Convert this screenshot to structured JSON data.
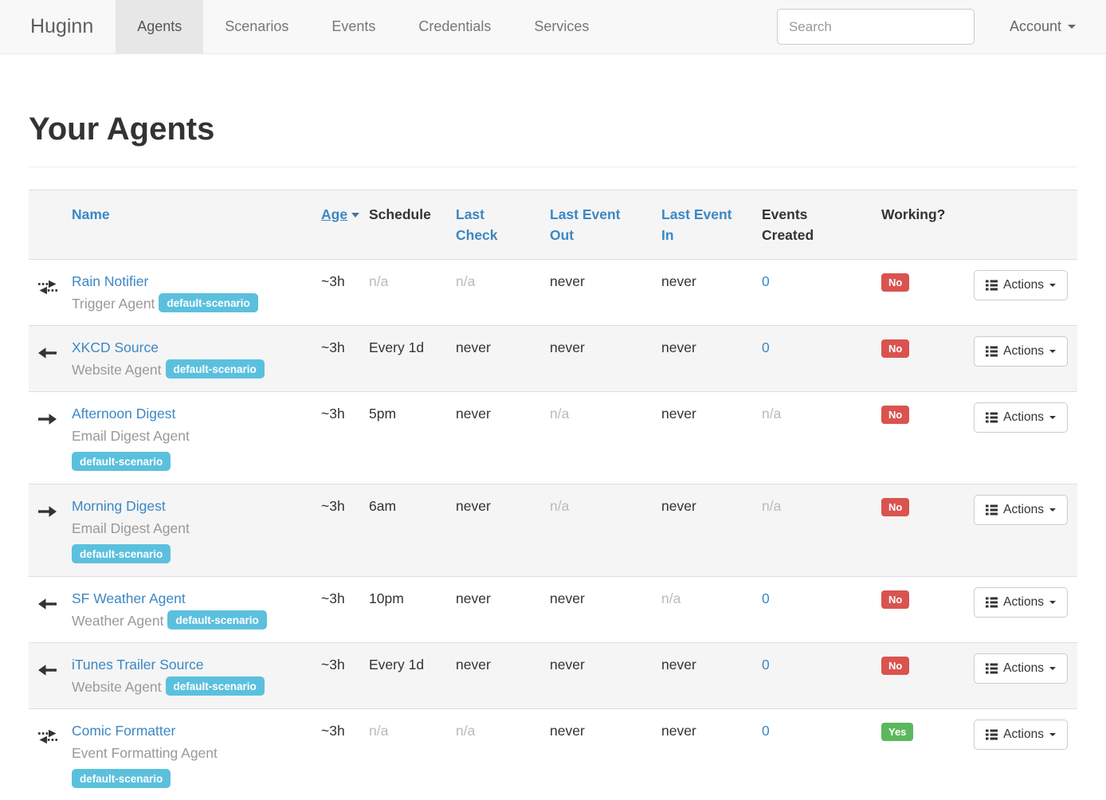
{
  "colors": {
    "link": "#3c87c4",
    "badge_info": "#5bc0de",
    "label_danger": "#d9534f",
    "label_success": "#5cb85c"
  },
  "navbar": {
    "brand": "Huginn",
    "items": [
      {
        "label": "Agents",
        "active": true
      },
      {
        "label": "Scenarios",
        "active": false
      },
      {
        "label": "Events",
        "active": false
      },
      {
        "label": "Credentials",
        "active": false
      },
      {
        "label": "Services",
        "active": false
      }
    ],
    "search_placeholder": "Search",
    "account_label": "Account"
  },
  "page": {
    "title": "Your Agents"
  },
  "table": {
    "headers": {
      "name": "Name",
      "age": "Age",
      "schedule": "Schedule",
      "last_check": "Last Check",
      "last_event_out": "Last Event Out",
      "last_event_in": "Last Event In",
      "events_created": "Events Created",
      "working": "Working?"
    },
    "actions_label": "Actions",
    "rows": [
      {
        "icon": "exchange-icon",
        "name": "Rain Notifier",
        "type": "Trigger Agent",
        "scenario": "default-scenario",
        "badge_on_new_line": false,
        "age": "~3h",
        "schedule": "n/a",
        "last_check": "n/a",
        "last_event_out": "never",
        "last_event_in": "never",
        "events_created": "0",
        "working": "No"
      },
      {
        "icon": "arrow-left-icon",
        "name": "XKCD Source",
        "type": "Website Agent",
        "scenario": "default-scenario",
        "badge_on_new_line": false,
        "age": "~3h",
        "schedule": "Every 1d",
        "last_check": "never",
        "last_event_out": "never",
        "last_event_in": "never",
        "events_created": "0",
        "working": "No"
      },
      {
        "icon": "arrow-right-icon",
        "name": "Afternoon Digest",
        "type": "Email Digest Agent",
        "scenario": "default-scenario",
        "badge_on_new_line": true,
        "age": "~3h",
        "schedule": "5pm",
        "last_check": "never",
        "last_event_out": "n/a",
        "last_event_in": "never",
        "events_created": "n/a",
        "working": "No"
      },
      {
        "icon": "arrow-right-icon",
        "name": "Morning Digest",
        "type": "Email Digest Agent",
        "scenario": "default-scenario",
        "badge_on_new_line": true,
        "age": "~3h",
        "schedule": "6am",
        "last_check": "never",
        "last_event_out": "n/a",
        "last_event_in": "never",
        "events_created": "n/a",
        "working": "No"
      },
      {
        "icon": "arrow-left-icon",
        "name": "SF Weather Agent",
        "type": "Weather Agent",
        "scenario": "default-scenario",
        "badge_on_new_line": false,
        "age": "~3h",
        "schedule": "10pm",
        "last_check": "never",
        "last_event_out": "never",
        "last_event_in": "n/a",
        "events_created": "0",
        "working": "No"
      },
      {
        "icon": "arrow-left-icon",
        "name": "iTunes Trailer Source",
        "type": "Website Agent",
        "scenario": "default-scenario",
        "badge_on_new_line": false,
        "age": "~3h",
        "schedule": "Every 1d",
        "last_check": "never",
        "last_event_out": "never",
        "last_event_in": "never",
        "events_created": "0",
        "working": "No"
      },
      {
        "icon": "exchange-icon",
        "name": "Comic Formatter",
        "type": "Event Formatting Agent",
        "scenario": "default-scenario",
        "badge_on_new_line": true,
        "age": "~3h",
        "schedule": "n/a",
        "last_check": "n/a",
        "last_event_out": "never",
        "last_event_in": "never",
        "events_created": "0",
        "working": "Yes"
      }
    ]
  }
}
